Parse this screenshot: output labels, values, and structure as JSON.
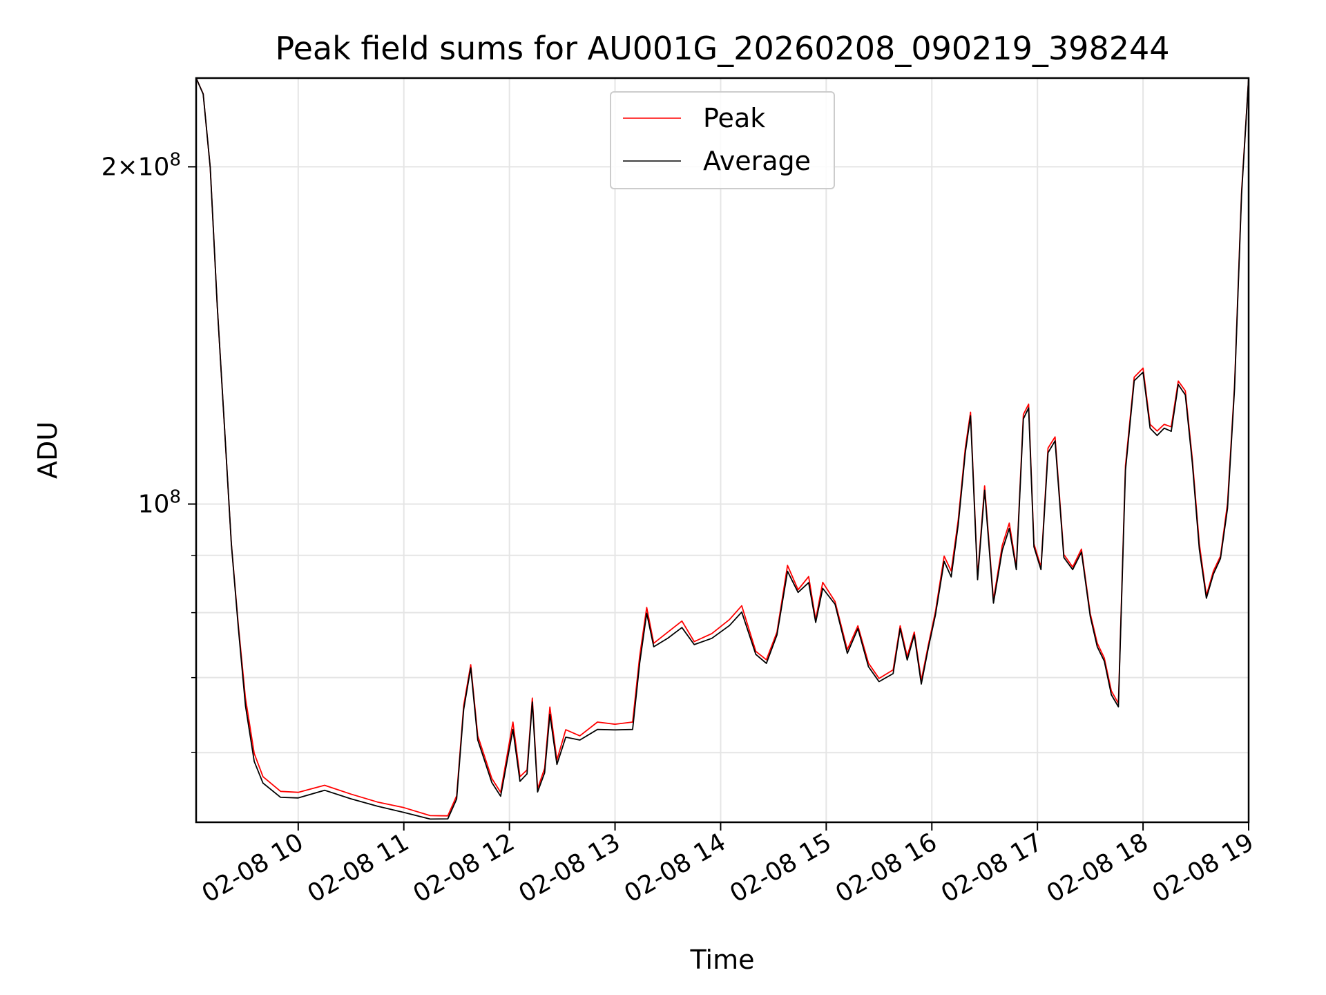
{
  "chart_data": {
    "type": "line",
    "title": "Peak field sums for AU001G_20260208_090219_398244",
    "xlabel": "Time",
    "ylabel": "ADU",
    "yscale": "log",
    "x_axis_type": "datetime",
    "xlim": [
      "2026-02-08 09:02",
      "2026-02-08 19:00"
    ],
    "ylim": [
      52000000,
      240000000
    ],
    "x_ticks": [
      "02-08 10",
      "02-08 11",
      "02-08 12",
      "02-08 13",
      "02-08 14",
      "02-08 15",
      "02-08 16",
      "02-08 17",
      "02-08 18",
      "02-08 19"
    ],
    "y_ticks": [
      {
        "value": 100000000,
        "label_base": "10",
        "label_exp": "8"
      },
      {
        "value": 200000000,
        "label_base": "2×10",
        "label_exp": "8"
      }
    ],
    "y_minor_ticks": [
      60000000,
      70000000,
      80000000,
      90000000
    ],
    "grid": true,
    "legend_position": "top-center",
    "series": [
      {
        "name": "Peak",
        "color": "#ff0000",
        "points": [
          [
            "2026-02-08 09:02",
            240000000
          ],
          [
            "2026-02-08 09:06",
            232000000
          ],
          [
            "2026-02-08 09:10",
            200000000
          ],
          [
            "2026-02-08 09:14",
            150000000
          ],
          [
            "2026-02-08 09:18",
            118000000
          ],
          [
            "2026-02-08 09:22",
            92000000
          ],
          [
            "2026-02-08 09:26",
            78000000
          ],
          [
            "2026-02-08 09:30",
            67000000
          ],
          [
            "2026-02-08 09:35",
            60000000
          ],
          [
            "2026-02-08 09:40",
            57000000
          ],
          [
            "2026-02-08 09:50",
            55500000
          ],
          [
            "2026-02-08 10:00",
            55200000
          ],
          [
            "2026-02-08 10:15",
            56200000
          ],
          [
            "2026-02-08 10:30",
            55000000
          ],
          [
            "2026-02-08 10:45",
            54300000
          ],
          [
            "2026-02-08 11:00",
            53500000
          ],
          [
            "2026-02-08 11:15",
            52800000
          ],
          [
            "2026-02-08 11:25",
            52600000
          ],
          [
            "2026-02-08 11:30",
            55000000
          ],
          [
            "2026-02-08 11:34",
            66000000
          ],
          [
            "2026-02-08 11:38",
            72000000
          ],
          [
            "2026-02-08 11:42",
            62000000
          ],
          [
            "2026-02-08 11:50",
            57000000
          ],
          [
            "2026-02-08 11:55",
            55200000
          ],
          [
            "2026-02-08 12:02",
            64000000
          ],
          [
            "2026-02-08 12:06",
            57000000
          ],
          [
            "2026-02-08 12:10",
            58000000
          ],
          [
            "2026-02-08 12:13",
            67000000
          ],
          [
            "2026-02-08 12:16",
            55800000
          ],
          [
            "2026-02-08 12:20",
            58000000
          ],
          [
            "2026-02-08 12:23",
            66000000
          ],
          [
            "2026-02-08 12:27",
            59000000
          ],
          [
            "2026-02-08 12:32",
            63000000
          ],
          [
            "2026-02-08 12:40",
            62000000
          ],
          [
            "2026-02-08 12:50",
            64000000
          ],
          [
            "2026-02-08 13:00",
            63500000
          ],
          [
            "2026-02-08 13:10",
            64000000
          ],
          [
            "2026-02-08 13:14",
            73000000
          ],
          [
            "2026-02-08 13:18",
            81000000
          ],
          [
            "2026-02-08 13:22",
            75000000
          ],
          [
            "2026-02-08 13:30",
            77000000
          ],
          [
            "2026-02-08 13:38",
            78500000
          ],
          [
            "2026-02-08 13:45",
            75500000
          ],
          [
            "2026-02-08 13:55",
            76500000
          ],
          [
            "2026-02-08 14:05",
            79000000
          ],
          [
            "2026-02-08 14:12",
            81000000
          ],
          [
            "2026-02-08 14:20",
            74000000
          ],
          [
            "2026-02-08 14:26",
            72500000
          ],
          [
            "2026-02-08 14:32",
            77000000
          ],
          [
            "2026-02-08 14:38",
            88000000
          ],
          [
            "2026-02-08 14:44",
            84000000
          ],
          [
            "2026-02-08 14:50",
            86000000
          ],
          [
            "2026-02-08 14:54",
            79000000
          ],
          [
            "2026-02-08 14:58",
            85000000
          ],
          [
            "2026-02-08 15:05",
            82000000
          ],
          [
            "2026-02-08 15:12",
            74000000
          ],
          [
            "2026-02-08 15:18",
            78000000
          ],
          [
            "2026-02-08 15:24",
            72000000
          ],
          [
            "2026-02-08 15:30",
            70000000
          ],
          [
            "2026-02-08 15:38",
            71000000
          ],
          [
            "2026-02-08 15:42",
            78000000
          ],
          [
            "2026-02-08 15:46",
            73000000
          ],
          [
            "2026-02-08 15:50",
            77000000
          ],
          [
            "2026-02-08 15:54",
            69500000
          ],
          [
            "2026-02-08 15:58",
            75000000
          ],
          [
            "2026-02-08 16:02",
            80000000
          ],
          [
            "2026-02-08 16:07",
            90000000
          ],
          [
            "2026-02-08 16:11",
            87000000
          ],
          [
            "2026-02-08 16:15",
            97000000
          ],
          [
            "2026-02-08 16:19",
            112000000
          ],
          [
            "2026-02-08 16:22",
            121000000
          ],
          [
            "2026-02-08 16:26",
            86000000
          ],
          [
            "2026-02-08 16:30",
            104000000
          ],
          [
            "2026-02-08 16:35",
            82000000
          ],
          [
            "2026-02-08 16:40",
            92000000
          ],
          [
            "2026-02-08 16:44",
            96000000
          ],
          [
            "2026-02-08 16:48",
            88000000
          ],
          [
            "2026-02-08 16:52",
            120000000
          ],
          [
            "2026-02-08 16:55",
            123000000
          ],
          [
            "2026-02-08 16:58",
            92000000
          ],
          [
            "2026-02-08 17:02",
            88000000
          ],
          [
            "2026-02-08 17:06",
            112000000
          ],
          [
            "2026-02-08 17:10",
            115000000
          ],
          [
            "2026-02-08 17:15",
            90000000
          ],
          [
            "2026-02-08 17:20",
            88000000
          ],
          [
            "2026-02-08 17:25",
            91000000
          ],
          [
            "2026-02-08 17:30",
            80000000
          ],
          [
            "2026-02-08 17:34",
            75000000
          ],
          [
            "2026-02-08 17:38",
            73000000
          ],
          [
            "2026-02-08 17:42",
            68000000
          ],
          [
            "2026-02-08 17:46",
            66500000
          ],
          [
            "2026-02-08 17:50",
            108000000
          ],
          [
            "2026-02-08 17:55",
            130000000
          ],
          [
            "2026-02-08 18:00",
            132000000
          ],
          [
            "2026-02-08 18:04",
            118000000
          ],
          [
            "2026-02-08 18:08",
            116000000
          ],
          [
            "2026-02-08 18:12",
            118000000
          ],
          [
            "2026-02-08 18:16",
            117000000
          ],
          [
            "2026-02-08 18:20",
            129000000
          ],
          [
            "2026-02-08 18:24",
            126000000
          ],
          [
            "2026-02-08 18:28",
            110000000
          ],
          [
            "2026-02-08 18:32",
            92000000
          ],
          [
            "2026-02-08 18:36",
            83000000
          ],
          [
            "2026-02-08 18:40",
            87000000
          ],
          [
            "2026-02-08 18:44",
            90000000
          ],
          [
            "2026-02-08 18:48",
            100000000
          ],
          [
            "2026-02-08 18:52",
            128000000
          ],
          [
            "2026-02-08 18:56",
            190000000
          ],
          [
            "2026-02-08 19:00",
            240000000
          ]
        ]
      },
      {
        "name": "Average",
        "color": "#000000",
        "points": [
          [
            "2026-02-08 09:02",
            240000000
          ],
          [
            "2026-02-08 09:06",
            232000000
          ],
          [
            "2026-02-08 09:10",
            200000000
          ],
          [
            "2026-02-08 09:14",
            150000000
          ],
          [
            "2026-02-08 09:18",
            118000000
          ],
          [
            "2026-02-08 09:22",
            92000000
          ],
          [
            "2026-02-08 09:26",
            77500000
          ],
          [
            "2026-02-08 09:30",
            66000000
          ],
          [
            "2026-02-08 09:35",
            59000000
          ],
          [
            "2026-02-08 09:40",
            56300000
          ],
          [
            "2026-02-08 09:50",
            54800000
          ],
          [
            "2026-02-08 10:00",
            54600000
          ],
          [
            "2026-02-08 10:15",
            55600000
          ],
          [
            "2026-02-08 10:30",
            54500000
          ],
          [
            "2026-02-08 10:45",
            53800000
          ],
          [
            "2026-02-08 11:00",
            53000000
          ],
          [
            "2026-02-08 11:15",
            52400000
          ],
          [
            "2026-02-08 11:25",
            52300000
          ],
          [
            "2026-02-08 11:30",
            54600000
          ],
          [
            "2026-02-08 11:34",
            65500000
          ],
          [
            "2026-02-08 11:38",
            71500000
          ],
          [
            "2026-02-08 11:42",
            61500000
          ],
          [
            "2026-02-08 11:50",
            56500000
          ],
          [
            "2026-02-08 11:55",
            54800000
          ],
          [
            "2026-02-08 12:02",
            63000000
          ],
          [
            "2026-02-08 12:06",
            56500000
          ],
          [
            "2026-02-08 12:10",
            57500000
          ],
          [
            "2026-02-08 12:13",
            66500000
          ],
          [
            "2026-02-08 12:16",
            55400000
          ],
          [
            "2026-02-08 12:20",
            57500000
          ],
          [
            "2026-02-08 12:23",
            65000000
          ],
          [
            "2026-02-08 12:27",
            58500000
          ],
          [
            "2026-02-08 12:32",
            62000000
          ],
          [
            "2026-02-08 12:40",
            61500000
          ],
          [
            "2026-02-08 12:50",
            63000000
          ],
          [
            "2026-02-08 13:00",
            62800000
          ],
          [
            "2026-02-08 13:10",
            63000000
          ],
          [
            "2026-02-08 13:14",
            72000000
          ],
          [
            "2026-02-08 13:18",
            80000000
          ],
          [
            "2026-02-08 13:22",
            74500000
          ],
          [
            "2026-02-08 13:30",
            76000000
          ],
          [
            "2026-02-08 13:38",
            77500000
          ],
          [
            "2026-02-08 13:45",
            75000000
          ],
          [
            "2026-02-08 13:55",
            75800000
          ],
          [
            "2026-02-08 14:05",
            78000000
          ],
          [
            "2026-02-08 14:12",
            80000000
          ],
          [
            "2026-02-08 14:20",
            73500000
          ],
          [
            "2026-02-08 14:26",
            72000000
          ],
          [
            "2026-02-08 14:32",
            76500000
          ],
          [
            "2026-02-08 14:38",
            87000000
          ],
          [
            "2026-02-08 14:44",
            83500000
          ],
          [
            "2026-02-08 14:50",
            85000000
          ],
          [
            "2026-02-08 14:54",
            78500000
          ],
          [
            "2026-02-08 14:58",
            84000000
          ],
          [
            "2026-02-08 15:05",
            81500000
          ],
          [
            "2026-02-08 15:12",
            73500000
          ],
          [
            "2026-02-08 15:18",
            77500000
          ],
          [
            "2026-02-08 15:24",
            71500000
          ],
          [
            "2026-02-08 15:30",
            69500000
          ],
          [
            "2026-02-08 15:38",
            70500000
          ],
          [
            "2026-02-08 15:42",
            77500000
          ],
          [
            "2026-02-08 15:46",
            72500000
          ],
          [
            "2026-02-08 15:50",
            76500000
          ],
          [
            "2026-02-08 15:54",
            69000000
          ],
          [
            "2026-02-08 15:58",
            74500000
          ],
          [
            "2026-02-08 16:02",
            79500000
          ],
          [
            "2026-02-08 16:07",
            89000000
          ],
          [
            "2026-02-08 16:11",
            86000000
          ],
          [
            "2026-02-08 16:15",
            96000000
          ],
          [
            "2026-02-08 16:19",
            111000000
          ],
          [
            "2026-02-08 16:22",
            120000000
          ],
          [
            "2026-02-08 16:26",
            85500000
          ],
          [
            "2026-02-08 16:30",
            103000000
          ],
          [
            "2026-02-08 16:35",
            81500000
          ],
          [
            "2026-02-08 16:40",
            91000000
          ],
          [
            "2026-02-08 16:44",
            95000000
          ],
          [
            "2026-02-08 16:48",
            87500000
          ],
          [
            "2026-02-08 16:52",
            119000000
          ],
          [
            "2026-02-08 16:55",
            122000000
          ],
          [
            "2026-02-08 16:58",
            91500000
          ],
          [
            "2026-02-08 17:02",
            87500000
          ],
          [
            "2026-02-08 17:06",
            111000000
          ],
          [
            "2026-02-08 17:10",
            114000000
          ],
          [
            "2026-02-08 17:15",
            89500000
          ],
          [
            "2026-02-08 17:20",
            87500000
          ],
          [
            "2026-02-08 17:25",
            90500000
          ],
          [
            "2026-02-08 17:30",
            79500000
          ],
          [
            "2026-02-08 17:34",
            74500000
          ],
          [
            "2026-02-08 17:38",
            72500000
          ],
          [
            "2026-02-08 17:42",
            67500000
          ],
          [
            "2026-02-08 17:46",
            66000000
          ],
          [
            "2026-02-08 17:50",
            107000000
          ],
          [
            "2026-02-08 17:55",
            129000000
          ],
          [
            "2026-02-08 18:00",
            131000000
          ],
          [
            "2026-02-08 18:04",
            117000000
          ],
          [
            "2026-02-08 18:08",
            115000000
          ],
          [
            "2026-02-08 18:12",
            117000000
          ],
          [
            "2026-02-08 18:16",
            116000000
          ],
          [
            "2026-02-08 18:20",
            128000000
          ],
          [
            "2026-02-08 18:24",
            125000000
          ],
          [
            "2026-02-08 18:28",
            109000000
          ],
          [
            "2026-02-08 18:32",
            91000000
          ],
          [
            "2026-02-08 18:36",
            82500000
          ],
          [
            "2026-02-08 18:40",
            86500000
          ],
          [
            "2026-02-08 18:44",
            89500000
          ],
          [
            "2026-02-08 18:48",
            99000000
          ],
          [
            "2026-02-08 18:52",
            127000000
          ],
          [
            "2026-02-08 18:56",
            189000000
          ],
          [
            "2026-02-08 19:00",
            240000000
          ]
        ]
      }
    ]
  }
}
